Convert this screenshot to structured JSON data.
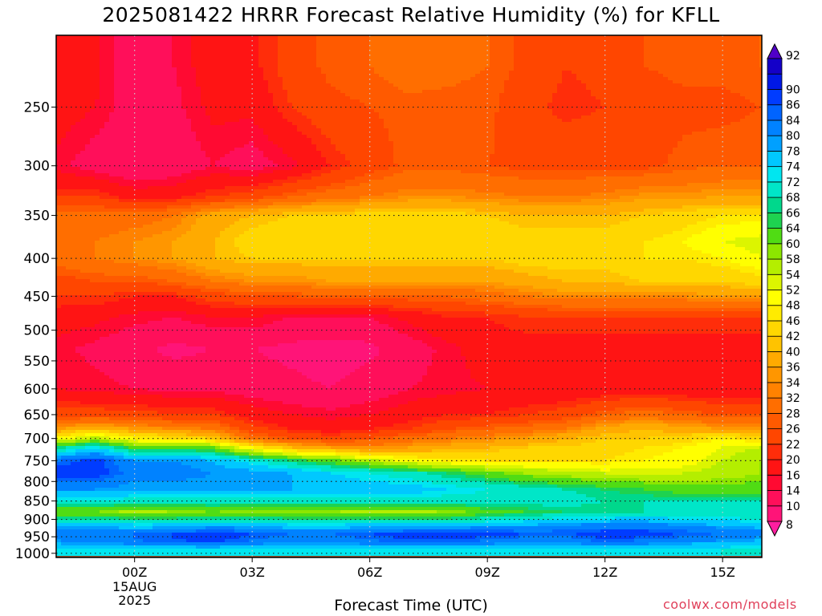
{
  "title": "2025081422 HRRR Forecast Relative Humidity (%) for KFLL",
  "credit": "coolwx.com/models",
  "colors": {
    "ground": "#a0522d",
    "frame": "#000000",
    "grid": "#222222"
  },
  "chart_data": {
    "type": "heatmap",
    "title": "2025081422 HRRR Forecast Relative Humidity (%) for KFLL",
    "xlabel": "Forecast Time (UTC)",
    "ylabel": "",
    "x_ticks": [
      {
        "label": "00Z",
        "hour": 2
      },
      {
        "label": "03Z",
        "hour": 5
      },
      {
        "label": "06Z",
        "hour": 8
      },
      {
        "label": "09Z",
        "hour": 11
      },
      {
        "label": "12Z",
        "hour": 14
      },
      {
        "label": "15Z",
        "hour": 17
      }
    ],
    "x_date_label": [
      "15AUG",
      "2025"
    ],
    "xlim": [
      0,
      18
    ],
    "y_ticks": [
      250,
      300,
      350,
      400,
      450,
      500,
      550,
      600,
      650,
      700,
      750,
      800,
      850,
      900,
      950,
      1000
    ],
    "ylim": [
      1013,
      200
    ],
    "y_scale": "log-pressure",
    "grid": true,
    "colorbar": {
      "levels": [
        8,
        10,
        14,
        16,
        20,
        22,
        26,
        28,
        32,
        34,
        36,
        40,
        42,
        46,
        48,
        52,
        54,
        58,
        60,
        64,
        66,
        68,
        72,
        74,
        78,
        80,
        84,
        86,
        90,
        92
      ],
      "colors": [
        "#ff1e96",
        "#ff1478",
        "#ff0f5a",
        "#ff0a32",
        "#ff1414",
        "#ff2d0a",
        "#ff4600",
        "#ff5a00",
        "#ff6e00",
        "#ff8200",
        "#ff9600",
        "#ffaa00",
        "#ffc300",
        "#ffd700",
        "#ffeb00",
        "#ffff00",
        "#dcf500",
        "#b4ee00",
        "#8ce600",
        "#50dc14",
        "#1ed250",
        "#00d88c",
        "#00e6c8",
        "#00e6f0",
        "#00c8ff",
        "#00a0ff",
        "#0082ff",
        "#0064ff",
        "#003cff",
        "#0018e6",
        "#1400c8",
        "#5000c8"
      ],
      "below_color": "#ff1ea0",
      "above_color": "#5000c8"
    },
    "rh_profiles": [
      {
        "pressure": 220,
        "rh": [
          18,
          17,
          11,
          14,
          18,
          19,
          24,
          27,
          28,
          30,
          29,
          28,
          25,
          22,
          23,
          26,
          27,
          27,
          28
        ]
      },
      {
        "pressure": 250,
        "rh": [
          18,
          16,
          12,
          13,
          17,
          17,
          22,
          25,
          26,
          27,
          27,
          27,
          23,
          21,
          22,
          24,
          25,
          25,
          26
        ]
      },
      {
        "pressure": 300,
        "rh": [
          15,
          12,
          10,
          11,
          14,
          12,
          15,
          20,
          24,
          27,
          27,
          26,
          25,
          25,
          25,
          25,
          27,
          28,
          28
        ]
      },
      {
        "pressure": 330,
        "rh": [
          22,
          22,
          18,
          19,
          22,
          24,
          28,
          30,
          32,
          34,
          34,
          33,
          32,
          32,
          33,
          35,
          35,
          36,
          36
        ]
      },
      {
        "pressure": 350,
        "rh": [
          30,
          30,
          30,
          32,
          38,
          40,
          42,
          42,
          44,
          44,
          44,
          42,
          40,
          40,
          40,
          42,
          44,
          46,
          46
        ]
      },
      {
        "pressure": 380,
        "rh": [
          32,
          32,
          34,
          36,
          40,
          44,
          46,
          46,
          46,
          46,
          46,
          46,
          44,
          44,
          44,
          46,
          48,
          52,
          54
        ]
      },
      {
        "pressure": 400,
        "rh": [
          30,
          32,
          34,
          36,
          40,
          42,
          42,
          42,
          42,
          42,
          42,
          42,
          44,
          44,
          44,
          46,
          46,
          48,
          52
        ]
      },
      {
        "pressure": 430,
        "rh": [
          24,
          26,
          26,
          28,
          32,
          34,
          34,
          36,
          36,
          36,
          36,
          36,
          38,
          40,
          40,
          42,
          42,
          42,
          44
        ]
      },
      {
        "pressure": 450,
        "rh": [
          22,
          22,
          20,
          20,
          24,
          26,
          26,
          28,
          28,
          28,
          28,
          30,
          32,
          34,
          34,
          34,
          34,
          36,
          36
        ]
      },
      {
        "pressure": 480,
        "rh": [
          18,
          17,
          15,
          14,
          16,
          16,
          14,
          14,
          14,
          17,
          20,
          20,
          22,
          22,
          22,
          22,
          22,
          22,
          22
        ]
      },
      {
        "pressure": 530,
        "rh": [
          15,
          13,
          11,
          9,
          10,
          10,
          9,
          8,
          9,
          12,
          15,
          18,
          18,
          18,
          18,
          18,
          18,
          18,
          18
        ]
      },
      {
        "pressure": 600,
        "rh": [
          16,
          15,
          14,
          13,
          13,
          12,
          11,
          10,
          12,
          14,
          15,
          16,
          16,
          16,
          17,
          18,
          17,
          16,
          16
        ]
      },
      {
        "pressure": 650,
        "rh": [
          24,
          24,
          24,
          22,
          22,
          18,
          16,
          15,
          16,
          18,
          20,
          20,
          22,
          24,
          28,
          30,
          28,
          26,
          26
        ]
      },
      {
        "pressure": 680,
        "rh": [
          36,
          40,
          36,
          34,
          32,
          24,
          20,
          18,
          20,
          22,
          26,
          28,
          30,
          32,
          38,
          40,
          38,
          36,
          36
        ]
      },
      {
        "pressure": 700,
        "rh": [
          50,
          56,
          48,
          46,
          42,
          30,
          26,
          24,
          26,
          30,
          32,
          34,
          36,
          40,
          42,
          42,
          44,
          48,
          44
        ]
      },
      {
        "pressure": 720,
        "rh": [
          66,
          74,
          62,
          64,
          60,
          48,
          40,
          36,
          34,
          36,
          38,
          40,
          42,
          42,
          44,
          46,
          48,
          52,
          54
        ]
      },
      {
        "pressure": 750,
        "rh": [
          84,
          88,
          80,
          80,
          78,
          72,
          66,
          62,
          56,
          50,
          48,
          46,
          46,
          46,
          46,
          48,
          50,
          54,
          58
        ]
      },
      {
        "pressure": 780,
        "rh": [
          88,
          88,
          82,
          82,
          80,
          80,
          78,
          74,
          72,
          70,
          66,
          62,
          58,
          56,
          54,
          54,
          54,
          56,
          58
        ]
      },
      {
        "pressure": 820,
        "rh": [
          80,
          80,
          78,
          78,
          78,
          78,
          78,
          78,
          76,
          76,
          74,
          72,
          70,
          68,
          66,
          64,
          62,
          62,
          62
        ]
      },
      {
        "pressure": 850,
        "rh": [
          72,
          72,
          70,
          70,
          70,
          70,
          70,
          70,
          70,
          70,
          70,
          70,
          70,
          70,
          68,
          68,
          68,
          68,
          68
        ]
      },
      {
        "pressure": 880,
        "rh": [
          60,
          60,
          56,
          58,
          60,
          58,
          58,
          58,
          56,
          56,
          58,
          62,
          64,
          66,
          66,
          68,
          68,
          68,
          68
        ]
      },
      {
        "pressure": 910,
        "rh": [
          74,
          74,
          72,
          72,
          74,
          74,
          72,
          72,
          72,
          72,
          72,
          74,
          76,
          78,
          80,
          80,
          78,
          76,
          74
        ]
      },
      {
        "pressure": 940,
        "rh": [
          84,
          84,
          84,
          86,
          88,
          86,
          84,
          84,
          86,
          88,
          88,
          88,
          86,
          86,
          88,
          88,
          86,
          84,
          82
        ]
      },
      {
        "pressure": 960,
        "rh": [
          80,
          82,
          84,
          86,
          88,
          84,
          82,
          82,
          84,
          86,
          86,
          84,
          82,
          82,
          86,
          84,
          82,
          80,
          78
        ]
      },
      {
        "pressure": 990,
        "rh": [
          74,
          74,
          74,
          74,
          74,
          74,
          74,
          74,
          74,
          74,
          74,
          74,
          74,
          74,
          74,
          74,
          72,
          72,
          70
        ]
      },
      {
        "pressure": 1005,
        "rh": [
          72,
          72,
          72,
          72,
          72,
          72,
          72,
          72,
          72,
          72,
          72,
          72,
          72,
          72,
          72,
          72,
          72,
          72,
          72
        ]
      }
    ],
    "ground_pressure": 1008
  }
}
